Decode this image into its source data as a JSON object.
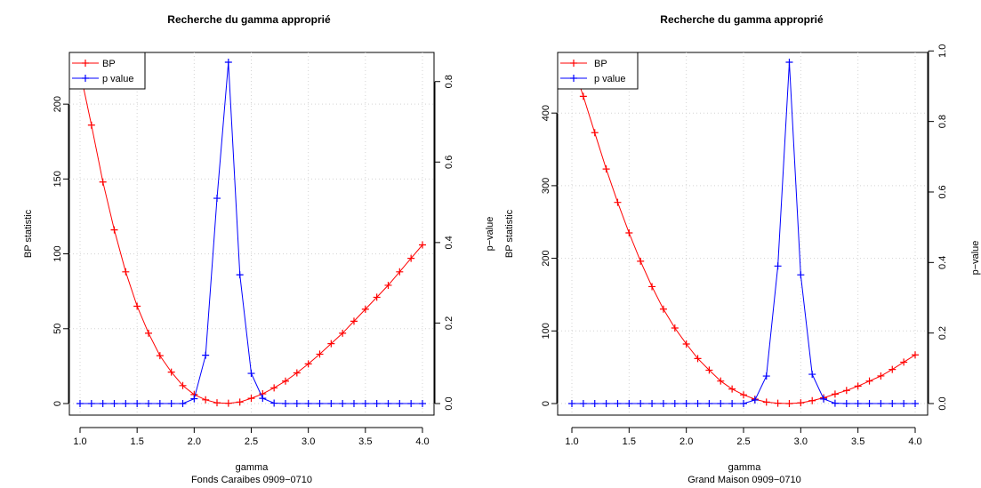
{
  "chart_data": [
    {
      "type": "line",
      "title": "Recherche du gamma approprié",
      "xlabel": "gamma",
      "subtitle": "Fonds Caraibes 0909−0710",
      "ylabel": "BP statistic",
      "y2label": "p−value",
      "xlim": [
        1.0,
        4.0
      ],
      "xticks": [
        "1.0",
        "1.5",
        "2.0",
        "2.5",
        "3.0",
        "3.5",
        "4.0"
      ],
      "ylim": [
        0,
        228
      ],
      "yticks": [
        "0",
        "50",
        "100",
        "150",
        "200"
      ],
      "y2lim": [
        0,
        0.848
      ],
      "y2ticks": [
        "0.0",
        "0.2",
        "0.4",
        "0.6",
        "0.8"
      ],
      "grid": true,
      "legend_position": "top-left",
      "x": [
        1.0,
        1.1,
        1.2,
        1.3,
        1.4,
        1.5,
        1.6,
        1.7,
        1.8,
        1.9,
        2.0,
        2.1,
        2.2,
        2.3,
        2.4,
        2.5,
        2.6,
        2.7,
        2.8,
        2.9,
        3.0,
        3.1,
        3.2,
        3.3,
        3.4,
        3.5,
        3.6,
        3.7,
        3.8,
        3.9,
        4.0
      ],
      "series": [
        {
          "name": "BP",
          "axis": "left",
          "color": "#ff0000",
          "values": [
            222,
            186,
            148,
            116,
            88,
            65,
            47,
            32,
            21,
            12,
            6,
            2.5,
            0.5,
            0.2,
            1,
            3.5,
            6.5,
            10.5,
            15,
            20.5,
            26.5,
            33,
            40,
            47,
            55,
            63,
            71,
            79,
            88,
            97,
            106
          ]
        },
        {
          "name": "p value",
          "axis": "right",
          "color": "#0000ff",
          "values": [
            0,
            0,
            0,
            0,
            0,
            0,
            0,
            0,
            0,
            0,
            0.012,
            0.12,
            0.51,
            0.848,
            0.32,
            0.075,
            0.013,
            0.001,
            0,
            0,
            0,
            0,
            0,
            0,
            0,
            0,
            0,
            0,
            0,
            0,
            0
          ]
        }
      ]
    },
    {
      "type": "line",
      "title": "Recherche du gamma approprié",
      "xlabel": "gamma",
      "subtitle": "Grand Maison 0909−0710",
      "ylabel": "BP statistic",
      "y2label": "p−value",
      "xlim": [
        1.0,
        4.0
      ],
      "xticks": [
        "1.0",
        "1.5",
        "2.0",
        "2.5",
        "3.0",
        "3.5",
        "4.0"
      ],
      "ylim": [
        0,
        470
      ],
      "yticks": [
        "0",
        "100",
        "200",
        "300",
        "400"
      ],
      "y2lim": [
        0,
        0.968
      ],
      "y2ticks": [
        "0.0",
        "0.2",
        "0.4",
        "0.6",
        "0.8",
        "1.0"
      ],
      "grid": true,
      "legend_position": "top-left",
      "x": [
        1.0,
        1.1,
        1.2,
        1.3,
        1.4,
        1.5,
        1.6,
        1.7,
        1.8,
        1.9,
        2.0,
        2.1,
        2.2,
        2.3,
        2.4,
        2.5,
        2.6,
        2.7,
        2.8,
        2.9,
        3.0,
        3.1,
        3.2,
        3.3,
        3.4,
        3.5,
        3.6,
        3.7,
        3.8,
        3.9,
        4.0
      ],
      "series": [
        {
          "name": "BP",
          "axis": "left",
          "color": "#ff0000",
          "values": [
            470,
            423,
            373,
            323,
            277,
            235,
            196,
            161,
            130,
            104,
            82,
            62,
            46,
            31,
            20,
            12,
            6,
            2,
            0.5,
            0,
            1,
            4,
            8,
            13,
            18,
            24,
            31,
            38,
            47,
            57,
            67
          ]
        },
        {
          "name": "p value",
          "axis": "right",
          "color": "#0000ff",
          "values": [
            0,
            0,
            0,
            0,
            0,
            0,
            0,
            0,
            0,
            0,
            0,
            0,
            0,
            0,
            0,
            0,
            0.01,
            0.078,
            0.39,
            0.968,
            0.365,
            0.083,
            0.013,
            0.001,
            0,
            0,
            0,
            0,
            0,
            0,
            0
          ]
        }
      ]
    }
  ]
}
